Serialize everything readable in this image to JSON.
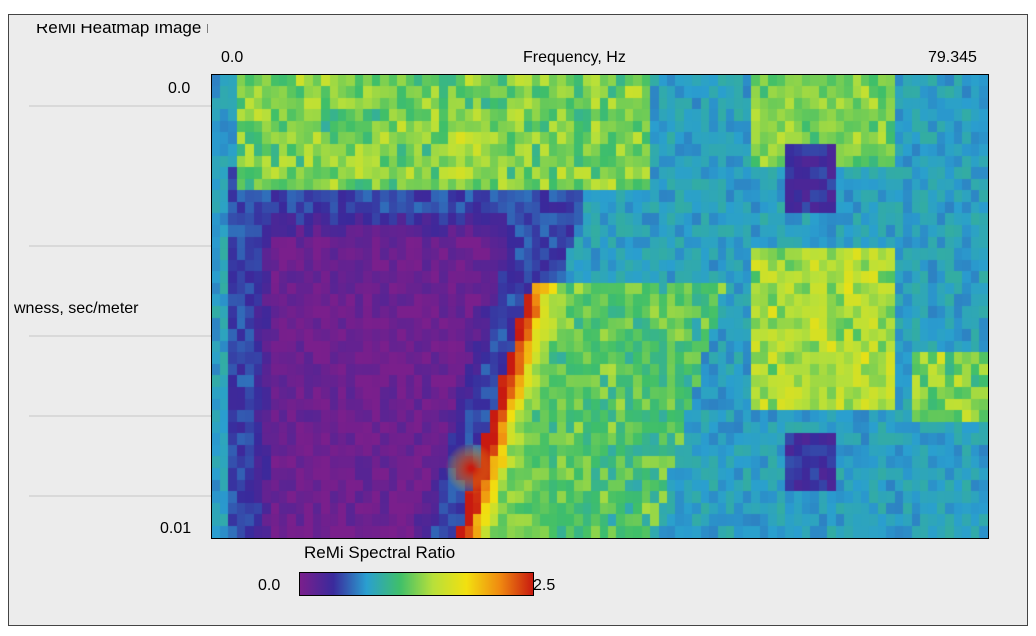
{
  "chart_data": {
    "type": "heatmap",
    "title": "ReMi Spectral Ratio",
    "xlabel": "Frequency, Hz",
    "ylabel": "Slowness, sec/meter",
    "x_tick_labels": [
      "0.0",
      "79.345"
    ],
    "y_tick_labels": [
      "0.0",
      "0.01"
    ],
    "xlim": [
      0.0,
      79.345
    ],
    "ylim": [
      0.0,
      0.01
    ],
    "y_direction": "down",
    "colorbar": {
      "label": "ReMi Spectral Ratio",
      "min_label": "0.0",
      "max_label": "2.5",
      "range": [
        0.0,
        2.5
      ],
      "colors": [
        "#7a1f8c",
        "#3a2a9c",
        "#2a9fd0",
        "#3fbf6a",
        "#b8e03a",
        "#f2e010",
        "#f08a10",
        "#c81a10"
      ]
    },
    "features": [
      {
        "description": "low-ratio purple zone",
        "freq_range_hz": [
          3,
          40
        ],
        "slowness_range": [
          0.0028,
          0.01
        ],
        "ratio": 0.1
      },
      {
        "description": "dispersion trend peak",
        "freq_hz": 26.5,
        "slowness": 0.0085,
        "ratio": 2.5
      },
      {
        "description": "high-frequency band",
        "freq_range_hz": [
          55,
          70
        ],
        "slowness_range": [
          0.004,
          0.007
        ],
        "ratio": 1.4
      }
    ]
  },
  "header_partial_text": "ReMi Heatmap Image Hz/sec/meter Mean",
  "y_label_visible": "wness, sec/meter"
}
